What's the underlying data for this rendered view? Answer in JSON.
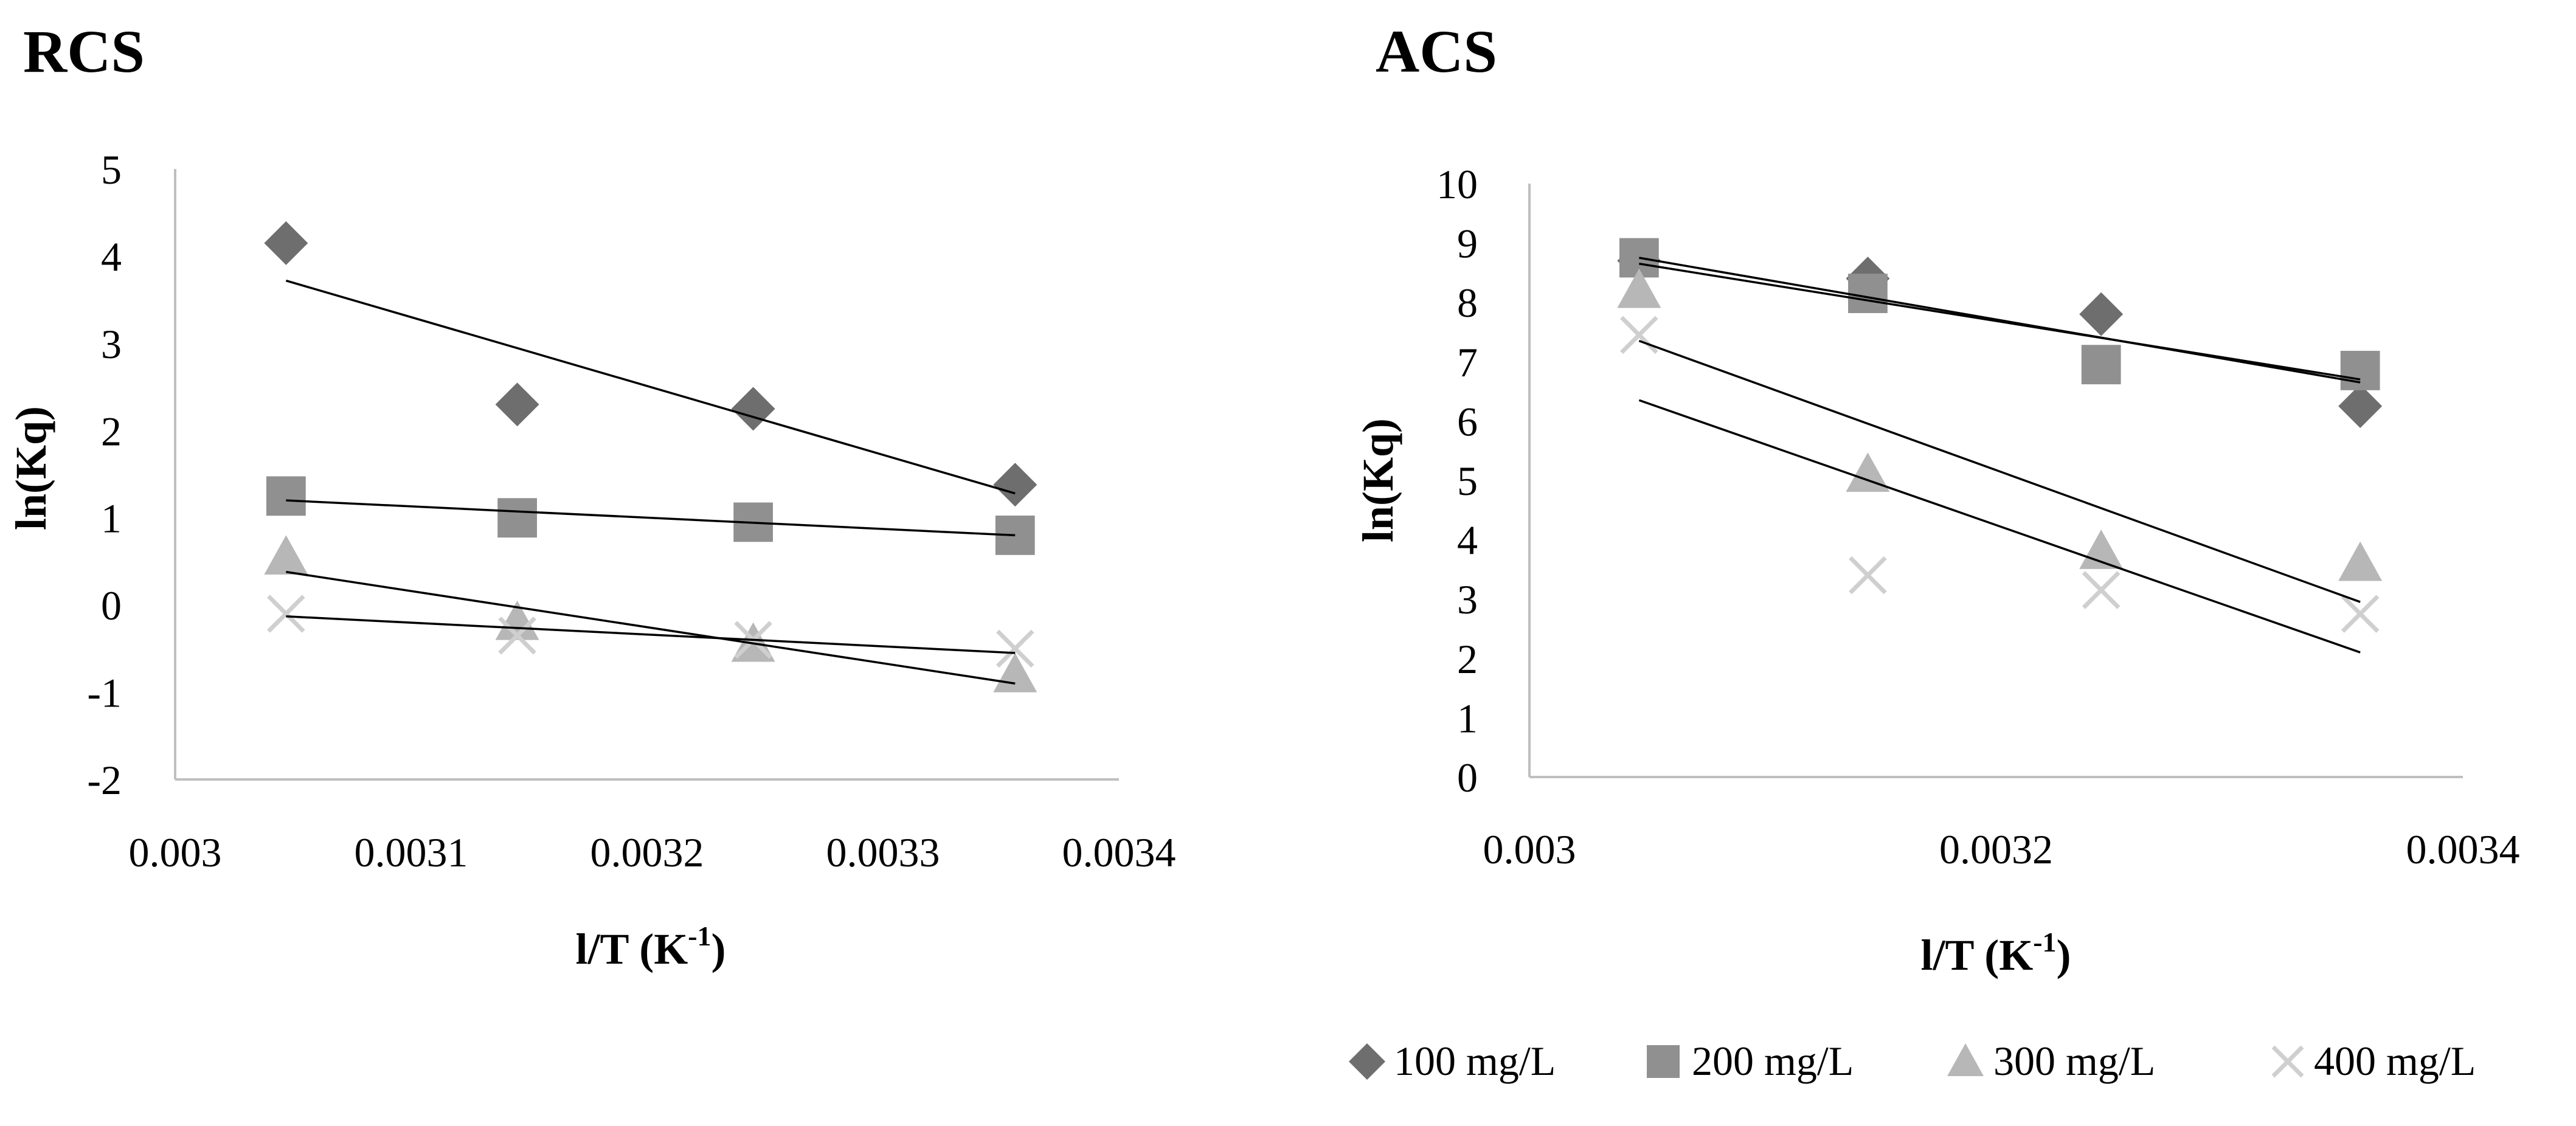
{
  "chart_data": [
    {
      "type": "scatter",
      "title": "RCS",
      "xlabel": "l/T (K",
      "xlabel_sup": "-1",
      "xlabel_end": ")",
      "ylabel": "ln(Kq)",
      "xlim": [
        0.003,
        0.0034
      ],
      "ylim": [
        -2,
        5
      ],
      "xticks": [
        0.003,
        0.0031,
        0.0032,
        0.0033,
        0.0034
      ],
      "xtick_labels": [
        "0.003",
        "0.0031",
        "0.0032",
        "0.0033",
        "0.0034"
      ],
      "yticks": [
        -2,
        -1,
        0,
        1,
        2,
        3,
        4,
        5
      ],
      "ytick_labels": [
        "-2",
        "-1",
        "0",
        "1",
        "2",
        "3",
        "4",
        "5"
      ],
      "series": [
        {
          "name": "100 mg/L",
          "marker": "diamond",
          "x": [
            0.003047,
            0.003145,
            0.003245,
            0.003356
          ],
          "y": [
            4.15,
            2.3,
            2.25,
            1.38
          ],
          "trend": [
            [
              0.003047,
              3.72
            ],
            [
              0.003356,
              1.28
            ]
          ]
        },
        {
          "name": "200 mg/L",
          "marker": "square",
          "x": [
            0.003047,
            0.003145,
            0.003245,
            0.003356
          ],
          "y": [
            1.25,
            1.0,
            0.95,
            0.8
          ],
          "trend": [
            [
              0.003047,
              1.2
            ],
            [
              0.003356,
              0.8
            ]
          ]
        },
        {
          "name": "300 mg/L",
          "marker": "triangle",
          "x": [
            0.003047,
            0.003145,
            0.003245,
            0.003356
          ],
          "y": [
            0.55,
            -0.2,
            -0.45,
            -0.8
          ],
          "trend": [
            [
              0.003047,
              0.38
            ],
            [
              0.003356,
              -0.9
            ]
          ]
        },
        {
          "name": "400 mg/L",
          "marker": "cross",
          "x": [
            0.003047,
            0.003145,
            0.003245,
            0.003356
          ],
          "y": [
            -0.1,
            -0.35,
            -0.4,
            -0.5
          ],
          "trend": [
            [
              0.003047,
              -0.13
            ],
            [
              0.003356,
              -0.55
            ]
          ]
        }
      ]
    },
    {
      "type": "scatter",
      "title": "ACS",
      "xlabel": "l/T (K",
      "xlabel_sup": "-1",
      "xlabel_end": ")",
      "ylabel": "ln(Kq)",
      "xlim": [
        0.003,
        0.0034
      ],
      "ylim": [
        0,
        10
      ],
      "xticks": [
        0.003,
        0.0032,
        0.0034
      ],
      "xtick_labels": [
        "0.003",
        "0.0032",
        "0.0034"
      ],
      "yticks": [
        0,
        1,
        2,
        3,
        4,
        5,
        6,
        7,
        8,
        9,
        10
      ],
      "ytick_labels": [
        "0",
        "1",
        "2",
        "3",
        "4",
        "5",
        "6",
        "7",
        "8",
        "9",
        "10"
      ],
      "series": [
        {
          "name": "100 mg/L",
          "marker": "diamond",
          "x": [
            0.003047,
            0.003145,
            0.003245,
            0.003356
          ],
          "y": [
            8.7,
            8.4,
            7.8,
            6.25
          ],
          "trend": [
            [
              0.003047,
              8.75
            ],
            [
              0.003356,
              6.65
            ]
          ]
        },
        {
          "name": "200 mg/L",
          "marker": "square",
          "x": [
            0.003047,
            0.003145,
            0.003245,
            0.003356
          ],
          "y": [
            8.75,
            8.15,
            6.95,
            6.85
          ],
          "trend": [
            [
              0.003047,
              8.65
            ],
            [
              0.003356,
              6.7
            ]
          ]
        },
        {
          "name": "300 mg/L",
          "marker": "triangle",
          "x": [
            0.003047,
            0.003145,
            0.003245,
            0.003356
          ],
          "y": [
            8.2,
            5.1,
            3.8,
            3.6
          ],
          "trend": [
            [
              0.003047,
              7.35
            ],
            [
              0.003356,
              2.95
            ]
          ]
        },
        {
          "name": "400 mg/L",
          "marker": "cross",
          "x": [
            0.003047,
            0.003145,
            0.003245,
            0.003356
          ],
          "y": [
            7.45,
            3.4,
            3.15,
            2.75
          ],
          "trend": [
            [
              0.003047,
              6.35
            ],
            [
              0.003356,
              2.1
            ]
          ]
        }
      ]
    }
  ],
  "legend": {
    "placement": "bottom-right",
    "items": [
      {
        "label": "100 mg/L",
        "marker": "diamond"
      },
      {
        "label": "200 mg/L",
        "marker": "square"
      },
      {
        "label": "300 mg/L",
        "marker": "triangle"
      },
      {
        "label": "400  mg/L",
        "marker": "cross"
      }
    ]
  },
  "colors": {
    "diamond": "#6e6e6e",
    "square": "#909090",
    "triangle": "#b7b7b7",
    "cross": "#cfcfcf",
    "axis": "#bfbfbf",
    "trend": "#000000"
  }
}
